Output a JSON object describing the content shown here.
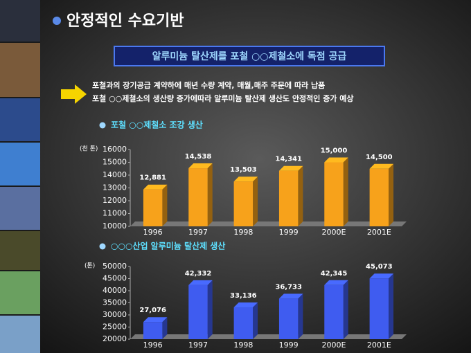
{
  "title": "안정적인 수요기반",
  "banner": "알루미늄 탈산제를 포철 ○○제철소에 독점  공급",
  "bullets": [
    "포철과의  장기공급 계약하에 매년 수량 계약,  매월,매주 주문에  따라 납품",
    "포철 ○○제철소의  생산량 증가에따라 알루미늄 탈산제 생산도 안정적인 증가  예상"
  ],
  "chart_data": [
    {
      "type": "bar",
      "title": "포철 ○○제철소 조강 생산",
      "y_label": "(천 톤)",
      "categories": [
        "1996",
        "1997",
        "1998",
        "1999",
        "2000E",
        "2001E"
      ],
      "values": [
        12881,
        14538,
        13503,
        14341,
        15000,
        14500
      ],
      "value_labels": [
        "12,881",
        "14,538",
        "13,503",
        "14,341",
        "15,000",
        "14,500"
      ],
      "color": "#f7a21b",
      "ylim": [
        10000,
        16000
      ],
      "yticks": [
        10000,
        11000,
        12000,
        13000,
        14000,
        15000,
        16000
      ],
      "grid": false
    },
    {
      "type": "bar",
      "title": "○○○산업 알루미늄 탈산제 생산",
      "y_label": "(톤)",
      "categories": [
        "1996",
        "1997",
        "1998",
        "1999",
        "2000E",
        "2001E"
      ],
      "values": [
        27076,
        42332,
        33136,
        36733,
        42345,
        45073
      ],
      "value_labels": [
        "27,076",
        "42,332",
        "33,136",
        "36,733",
        "42,345",
        "45,073"
      ],
      "color": "#3f5cf0",
      "ylim": [
        20000,
        50000
      ],
      "yticks": [
        20000,
        25000,
        30000,
        35000,
        40000,
        45000,
        50000
      ],
      "grid": false
    }
  ]
}
